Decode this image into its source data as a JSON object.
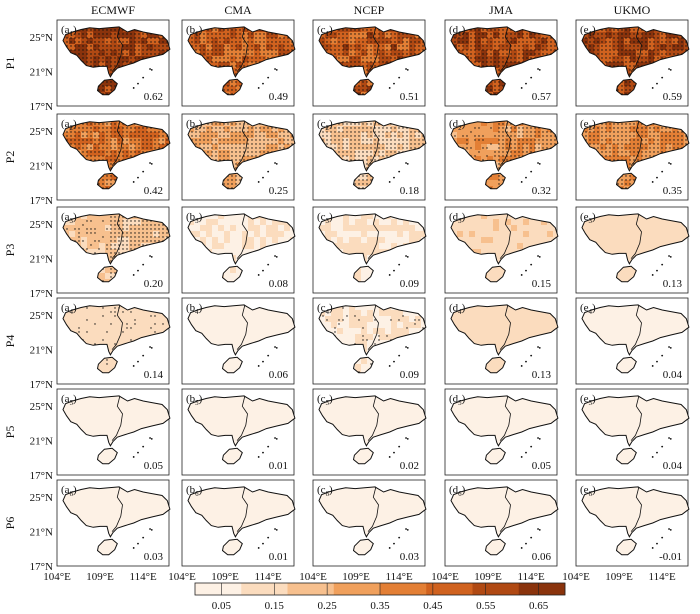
{
  "models": [
    "ECMWF",
    "CMA",
    "NCEP",
    "JMA",
    "UKMO"
  ],
  "panel_letters": [
    "a",
    "b",
    "c",
    "d",
    "e"
  ],
  "periods": [
    "P1",
    "P2",
    "P3",
    "P4",
    "P5",
    "P6"
  ],
  "period_subscripts": [
    "1",
    "2",
    "3",
    "4",
    "5",
    "6"
  ],
  "lat_labels": [
    "25°N",
    "21°N",
    "17°N"
  ],
  "lon_labels": [
    "104°E",
    "109°E",
    "114°E"
  ],
  "values": [
    [
      "0.62",
      "0.49",
      "0.51",
      "0.57",
      "0.59"
    ],
    [
      "0.42",
      "0.25",
      "0.18",
      "0.32",
      "0.35"
    ],
    [
      "0.20",
      "0.08",
      "0.09",
      "0.15",
      "0.13"
    ],
    [
      "0.14",
      "0.06",
      "0.09",
      "0.13",
      "0.04"
    ],
    [
      "0.05",
      "0.01",
      "0.02",
      "0.05",
      "0.04"
    ],
    [
      "0.03",
      "0.01",
      "0.03",
      "0.06",
      "-0.01"
    ]
  ],
  "stippling": [
    [
      "dense",
      "dense",
      "dense",
      "dense",
      "dense"
    ],
    [
      "dense",
      "dense",
      "dense",
      "partial",
      "dense"
    ],
    [
      "partial",
      "none",
      "none",
      "none",
      "none"
    ],
    [
      "sparse",
      "none",
      "sparse",
      "none",
      "none"
    ],
    [
      "none",
      "none",
      "none",
      "none",
      "none"
    ],
    [
      "none",
      "none",
      "none",
      "none",
      "none"
    ]
  ],
  "colorbar": {
    "ticks": [
      "0.05",
      "0.15",
      "0.25",
      "0.35",
      "0.45",
      "0.55",
      "0.65"
    ],
    "min": 0.0,
    "max": 0.7,
    "colors": [
      "#fdf1e5",
      "#fbdcbe",
      "#f7c08e",
      "#f0a05c",
      "#e37f35",
      "#d0621f",
      "#b04913",
      "#8a330c"
    ]
  }
}
